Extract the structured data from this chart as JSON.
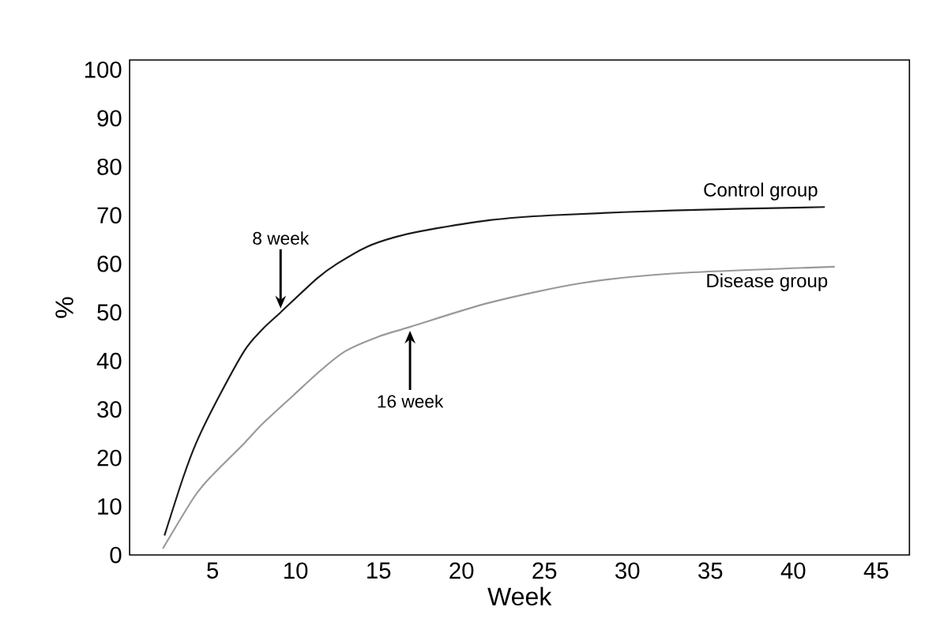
{
  "chart_data": {
    "type": "line",
    "xlabel": "Week",
    "ylabel": "%",
    "xlim": [
      0,
      47
    ],
    "ylim": [
      0,
      102
    ],
    "xticks": [
      5,
      10,
      15,
      20,
      25,
      30,
      35,
      40,
      45
    ],
    "yticks": [
      {
        "value": 0,
        "label": "0"
      },
      10,
      20,
      30,
      40,
      50,
      60,
      70,
      80,
      90,
      100
    ],
    "grid": false,
    "legend": false,
    "marker": "none",
    "line_style": "solid",
    "series": [
      {
        "name": "Control group",
        "color": "#1a1a1a",
        "x": [
          2.1,
          3.2,
          4,
          5.1,
          6.9,
          8,
          9.1,
          11.3,
          12.5,
          14.3,
          16,
          18,
          21.7,
          25.4,
          32.7,
          41.9
        ],
        "values": [
          4,
          15.7,
          23,
          30.8,
          42,
          46.5,
          50,
          57,
          60,
          63.5,
          65.5,
          67,
          69,
          70,
          71,
          71.7
        ]
      },
      {
        "name": "Disease group",
        "color": "#999999",
        "x": [
          2.0,
          3.9,
          5,
          6.9,
          8,
          9.9,
          11.5,
          13,
          15,
          16.9,
          21.7,
          27.2,
          32.7,
          42.5
        ],
        "values": [
          1.3,
          12,
          16.5,
          23,
          27,
          33,
          38,
          42,
          45,
          47,
          52,
          56,
          58,
          59.4
        ]
      }
    ],
    "annotations": [
      {
        "text": "8 week",
        "x": 9.1,
        "y": 50
      },
      {
        "text": "16 week",
        "x": 16.9,
        "y": 47
      }
    ]
  }
}
